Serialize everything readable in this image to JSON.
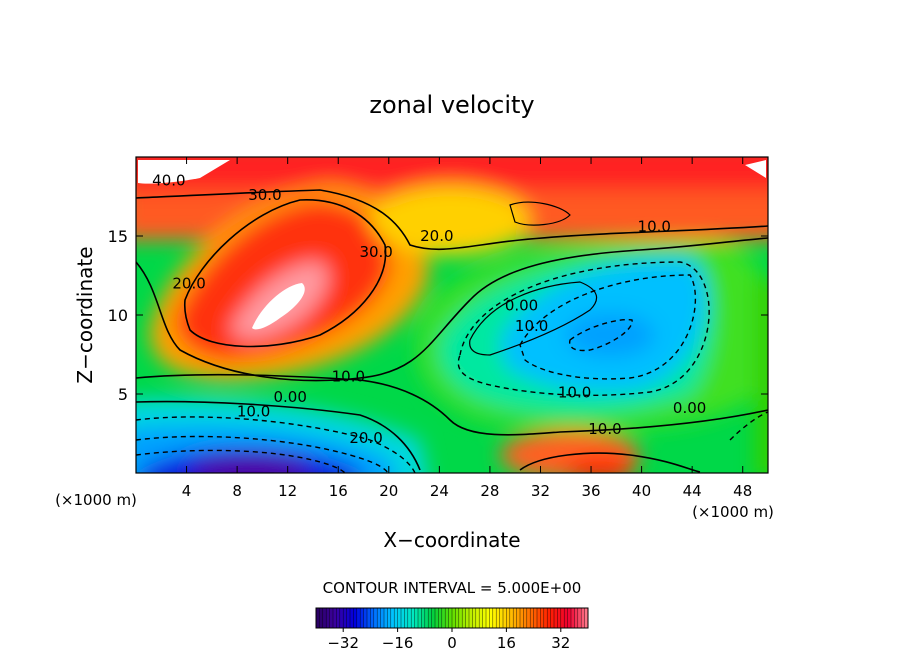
{
  "chart_data": {
    "type": "heatmap",
    "title": "zonal velocity",
    "xlabel": "X−coordinate",
    "ylabel": "Z−coordinate",
    "x_units": "(×1000 m)",
    "x_units_right": "(×1000 m)",
    "xlim": [
      0,
      50
    ],
    "ylim": [
      0,
      20
    ],
    "x_ticks": [
      4,
      8,
      12,
      16,
      20,
      24,
      28,
      32,
      36,
      40,
      44,
      48
    ],
    "y_ticks": [
      5,
      10,
      15
    ],
    "contour_interval_text": "CONTOUR INTERVAL = 5.000E+00",
    "colorbar": {
      "range": [
        -40,
        40
      ],
      "ticks": [
        -32,
        -16,
        0,
        16,
        32
      ],
      "colors": [
        "#2a0060",
        "#3a00a0",
        "#0000e0",
        "#0070ff",
        "#00c8ff",
        "#00e8c0",
        "#00d040",
        "#60e000",
        "#c0f000",
        "#ffff00",
        "#ffc000",
        "#ff7000",
        "#ff2000",
        "#f00030",
        "#ff8090"
      ]
    },
    "contour_labels": [
      {
        "text": "40.0",
        "x": 2.6,
        "y": 18.5
      },
      {
        "text": "30.0",
        "x": 10.2,
        "y": 17.6
      },
      {
        "text": "20.0",
        "x": 4.2,
        "y": 12.0
      },
      {
        "text": "30.0",
        "x": 19.0,
        "y": 14.0
      },
      {
        "text": "20.0",
        "x": 23.8,
        "y": 15.0
      },
      {
        "text": "10.0",
        "x": 41.0,
        "y": 15.6
      },
      {
        "text": "0.00",
        "x": 30.5,
        "y": 10.6
      },
      {
        "text": "10.0",
        "x": 31.3,
        "y": 9.3
      },
      {
        "text": "10.0",
        "x": 16.8,
        "y": 6.1
      },
      {
        "text": "0.00",
        "x": 12.2,
        "y": 4.8
      },
      {
        "text": "10.0",
        "x": 9.3,
        "y": 3.9
      },
      {
        "text": "20.0",
        "x": 18.2,
        "y": 2.2
      },
      {
        "text": "10.0",
        "x": 34.7,
        "y": 5.1
      },
      {
        "text": "0.00",
        "x": 43.8,
        "y": 4.1
      },
      {
        "text": "10.0",
        "x": 37.1,
        "y": 2.8
      }
    ]
  }
}
